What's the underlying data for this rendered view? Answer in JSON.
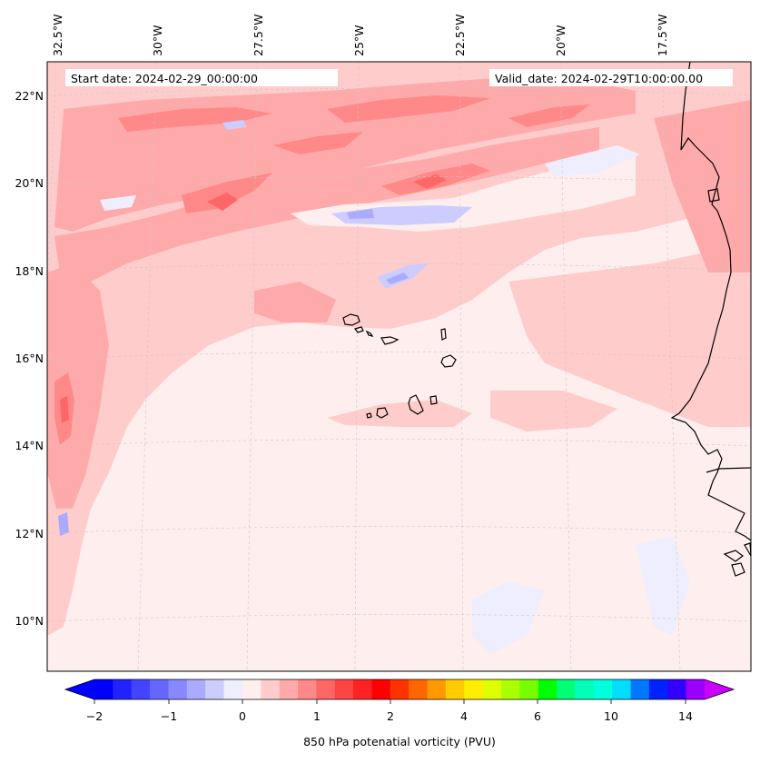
{
  "map": {
    "start_date_label": "Start date: 2024-02-29_00:00:00",
    "valid_date_label": "Valid_date: 2024-02-29T10:00:00.00",
    "lon_labels": [
      "32.5°W",
      "30°W",
      "27.5°W",
      "25°W",
      "22.5°W",
      "20°W",
      "17.5°W"
    ],
    "lat_labels": [
      "22°N",
      "20°N",
      "18°N",
      "16°N",
      "14°N",
      "12°N",
      "10°N"
    ],
    "extent": {
      "lon_min": -32.7,
      "lon_max": -15.2,
      "lat_min": 8.9,
      "lat_max": 22.8
    },
    "field": "850 hPa potential vorticity",
    "gridlines": true
  },
  "colorbar": {
    "label": "850 hPa potenatial vorticity (PVU)",
    "tick_labels": [
      "−2",
      "−1",
      "0",
      "1",
      "2",
      "4",
      "6",
      "10",
      "14"
    ],
    "extend": "both",
    "colors": [
      "#0000ff",
      "#2222ff",
      "#4444ff",
      "#6666ff",
      "#8888ff",
      "#aaaaff",
      "#ccccff",
      "#eeeeff",
      "#ffeeee",
      "#ffcccc",
      "#ffaaaa",
      "#ff8888",
      "#ff6666",
      "#ff4444",
      "#ff2222",
      "#ff0000",
      "#ff3300",
      "#ff6600",
      "#ff9900",
      "#ffcc00",
      "#ffee00",
      "#ddff00",
      "#aaff00",
      "#77ff00",
      "#00ff00",
      "#00ff77",
      "#00ffbb",
      "#00ffdd",
      "#00ddff",
      "#0077ff",
      "#0022ff",
      "#3300ff",
      "#9900ff"
    ],
    "under_color": "#0000ff",
    "over_color": "#cc00ff"
  }
}
